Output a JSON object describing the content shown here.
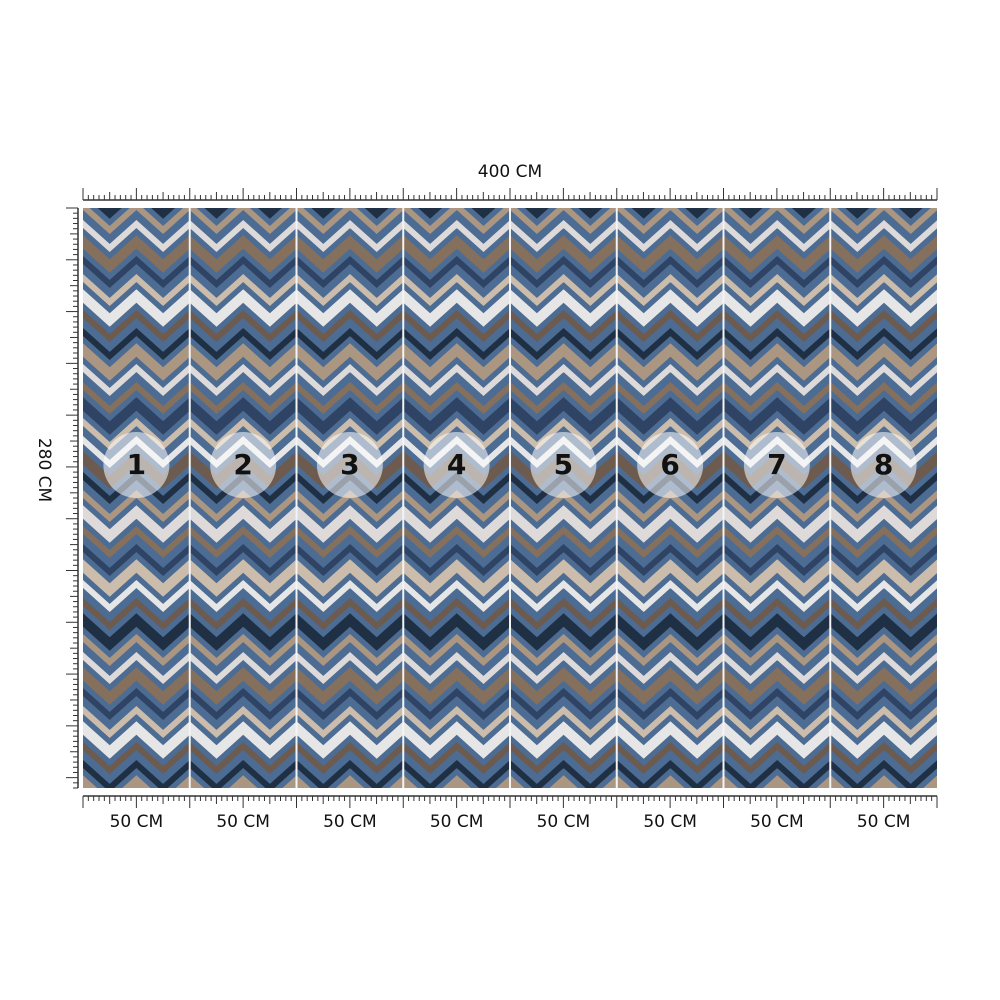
{
  "dimensions": {
    "width_label": "400 CM",
    "height_label": "280 CM"
  },
  "panels": [
    {
      "number": "1",
      "width_label": "50 CM"
    },
    {
      "number": "2",
      "width_label": "50 CM"
    },
    {
      "number": "3",
      "width_label": "50 CM"
    },
    {
      "number": "4",
      "width_label": "50 CM"
    },
    {
      "number": "5",
      "width_label": "50 CM"
    },
    {
      "number": "6",
      "width_label": "50 CM"
    },
    {
      "number": "7",
      "width_label": "50 CM"
    },
    {
      "number": "8",
      "width_label": "50 CM"
    }
  ]
}
